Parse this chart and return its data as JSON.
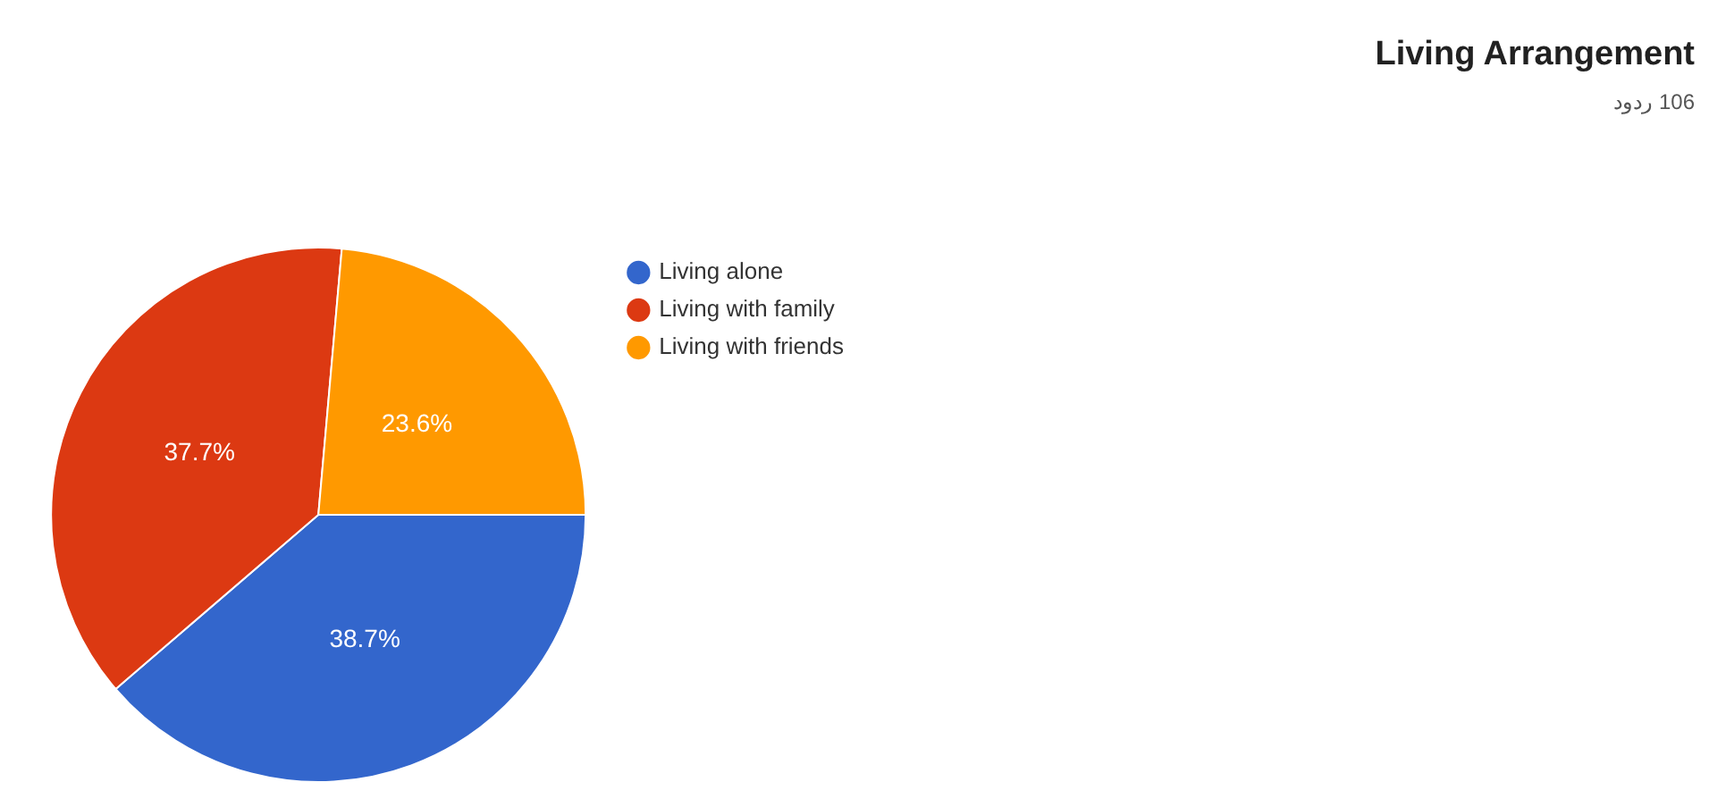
{
  "chart_data": {
    "type": "pie",
    "title": "Living Arrangement",
    "subtitle": "106 ردود",
    "categories": [
      "Living alone",
      "Living with family",
      "Living with friends"
    ],
    "values": [
      38.7,
      37.7,
      23.6
    ],
    "value_labels": [
      "38.7%",
      "37.7%",
      "23.6%"
    ],
    "colors": [
      "#3366cc",
      "#dc3912",
      "#ff9900"
    ],
    "legend": "right"
  }
}
